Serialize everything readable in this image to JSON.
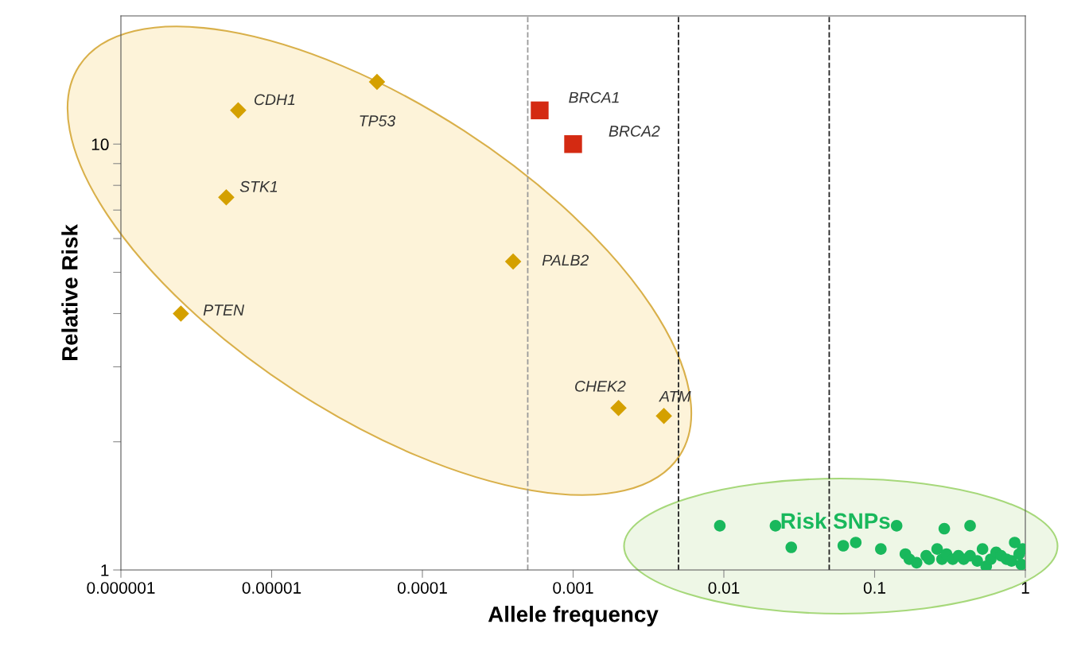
{
  "chart_data": {
    "type": "scatter",
    "xlabel": "Allele frequency",
    "ylabel": "Relative Risk",
    "log": "xy",
    "grid": false,
    "legend": false,
    "xlim": [
      1e-06,
      1
    ],
    "xticks": [
      {
        "value": 1e-06,
        "label": "0.000001"
      },
      {
        "value": 1e-05,
        "label": "0.00001"
      },
      {
        "value": 0.0001,
        "label": "0.0001"
      },
      {
        "value": 0.001,
        "label": "0.001"
      },
      {
        "value": 0.01,
        "label": "0.01"
      },
      {
        "value": 0.1,
        "label": "0.1"
      },
      1
    ],
    "ylim": [
      1,
      20
    ],
    "yticks": [
      1,
      {
        "value": 2,
        "label": null
      },
      {
        "value": 3,
        "label": null
      },
      {
        "value": 4,
        "label": null
      },
      {
        "value": 5,
        "label": null
      },
      {
        "value": 6,
        "label": null
      },
      {
        "value": 7,
        "label": null
      },
      {
        "value": 8,
        "label": null
      },
      {
        "value": 9,
        "label": null
      },
      10
    ],
    "series": [
      {
        "color": "#d4a000",
        "marker": "diamond",
        "x": [
          6e-06,
          5e-05,
          5e-06,
          0.0004,
          2.5e-06,
          0.002,
          0.004
        ],
        "values": [
          12,
          14,
          7.5,
          5.3,
          4.0,
          2.4,
          2.3
        ]
      },
      {
        "color": "#d42a12",
        "marker": "square",
        "x": [
          0.0006,
          0.001
        ],
        "values": [
          12,
          10
        ]
      },
      {
        "color": "#19b85c",
        "marker": "circle",
        "x": [
          0.0094,
          0.022,
          0.028,
          0.062,
          0.075,
          0.11,
          0.14,
          0.29,
          0.43,
          0.16,
          0.17,
          0.19,
          0.22,
          0.23,
          0.26,
          0.28,
          0.3,
          0.33,
          0.36,
          0.39,
          0.43,
          0.48,
          0.52,
          0.55,
          0.59,
          0.64,
          0.69,
          0.75,
          0.81,
          0.85,
          0.91,
          0.94,
          0.96
        ],
        "values": [
          1.27,
          1.27,
          1.13,
          1.14,
          1.16,
          1.12,
          1.27,
          1.25,
          1.27,
          1.09,
          1.06,
          1.04,
          1.08,
          1.06,
          1.12,
          1.06,
          1.09,
          1.06,
          1.08,
          1.06,
          1.08,
          1.05,
          1.12,
          1.02,
          1.06,
          1.1,
          1.08,
          1.06,
          1.05,
          1.16,
          1.09,
          1.03,
          1.12
        ]
      }
    ],
    "ref_lines": [
      {
        "axis": "x",
        "value": 0.0005,
        "color": "#9a9a9a",
        "line_style": "dashed"
      },
      {
        "axis": "x",
        "value": 0.005,
        "color": "#222222",
        "line_style": "dashed"
      },
      {
        "axis": "x",
        "value": 0.05,
        "color": "#222222",
        "line_style": "dashed"
      }
    ],
    "annotations": [
      {
        "text": "CDH1",
        "x": 6e-06,
        "y": 12
      },
      {
        "text": "TP53",
        "x": 5e-05,
        "y": 14
      },
      {
        "text": "STK1",
        "x": 5e-06,
        "y": 7.5
      },
      {
        "text": "PALB2",
        "x": 0.0004,
        "y": 5.3
      },
      {
        "text": "PTEN",
        "x": 2.5e-06,
        "y": 4.0
      },
      {
        "text": "CHEK2",
        "x": 0.002,
        "y": 2.4
      },
      {
        "text": "ATM",
        "x": 0.004,
        "y": 2.3
      },
      {
        "text": "BRCA1",
        "x": 0.0006,
        "y": 12
      },
      {
        "text": "BRCA2",
        "x": 0.001,
        "y": 10
      },
      "Risk SNPs"
    ]
  }
}
